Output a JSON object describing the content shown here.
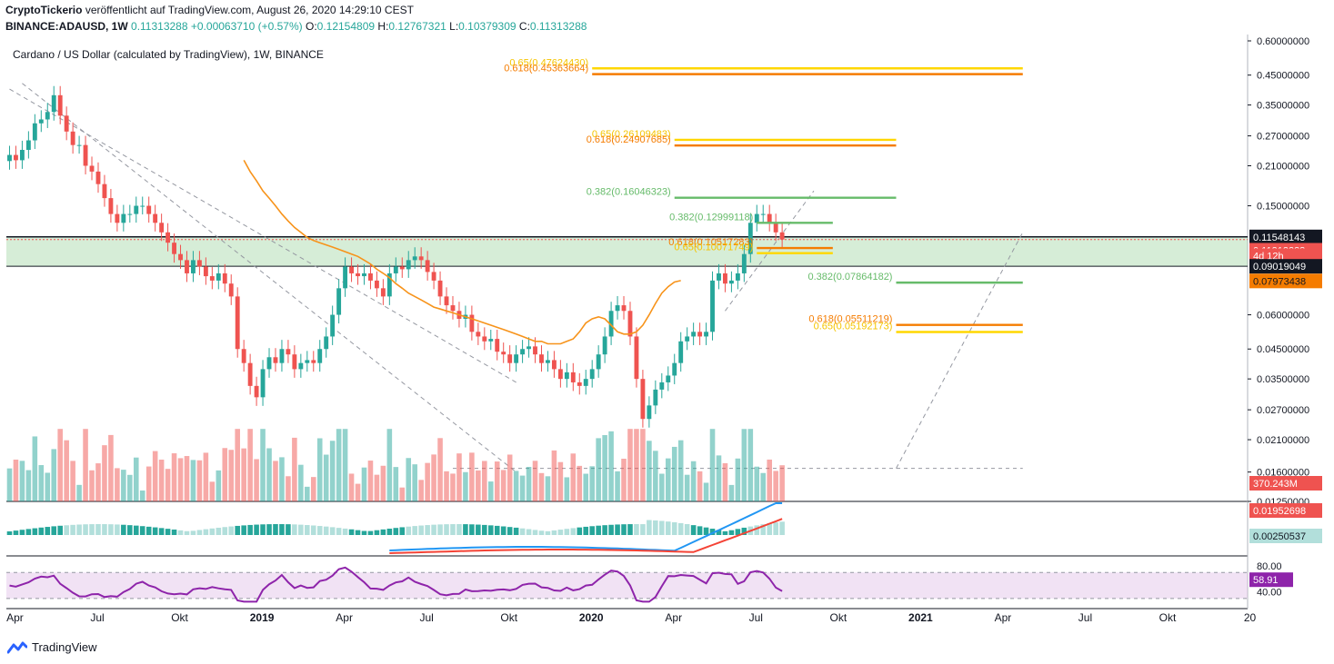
{
  "header": {
    "publisher": "CryptoTickerio",
    "published_text": "veröffentlicht auf TradingView.com, August 26, 2020 14:29:10 CEST",
    "symbol": "BINANCE:ADAUSD, 1W",
    "last": "0.11313288",
    "change": "+0.00063710 (+0.57%)",
    "o_label": "O:",
    "o_value": "0.12154809",
    "h_label": "H:",
    "h_value": "0.12767321",
    "l_label": "L:",
    "l_value": "0.10379309",
    "c_label": "C:",
    "c_value": "0.11313288"
  },
  "footer": {
    "brand": "TradingView"
  },
  "colors": {
    "up": "#26a69a",
    "down": "#ef5350",
    "ma": "#f7931a",
    "macd": "#2196f3",
    "signal": "#f44336",
    "rsi": "#8e24aa",
    "fib_gold": "#ffd700",
    "fib_orange": "#f57c00",
    "fib_green": "#66bb6a"
  },
  "chart_data": {
    "type": "candlestick",
    "title": "Cardano / US Dollar (calculated by TradingView), 1W, BINANCE",
    "y_scale": "log",
    "ylim": [
      0.0125,
      0.6
    ],
    "price_ticks": [
      "0.60000000",
      "0.45000000",
      "0.35000000",
      "0.27000000",
      "0.21000000",
      "0.15000000",
      "0.06000000",
      "0.04500000",
      "0.03500000",
      "0.02700000",
      "0.02100000",
      "0.01600000",
      "0.01250000"
    ],
    "price_tick_values": [
      0.6,
      0.45,
      0.35,
      0.27,
      0.21,
      0.15,
      0.06,
      0.045,
      0.035,
      0.027,
      0.021,
      0.016,
      0.0125
    ],
    "x_ticks": [
      "Apr",
      "Jul",
      "Okt",
      "2019",
      "Apr",
      "Jul",
      "Okt",
      "2020",
      "Apr",
      "Jul",
      "Okt",
      "2021",
      "Apr",
      "Jul",
      "Okt",
      "20"
    ],
    "x_tick_weeks": [
      0,
      13,
      26,
      39,
      52,
      65,
      78,
      91,
      104,
      117,
      130,
      143,
      156,
      169,
      182,
      195
    ],
    "price_labels": [
      {
        "text": "0.11548143",
        "value": 0.11548143,
        "bg": "#131722",
        "fg": "#ffffff"
      },
      {
        "text": "0.11313288",
        "value": 0.11313288,
        "bg": "#ef5350",
        "fg": "#ffffff"
      },
      {
        "text": "4d 12h",
        "value": 0.1,
        "bg": "#ef5350",
        "fg": "#ffffff"
      },
      {
        "text": "0.09019049",
        "value": 0.09019049,
        "bg": "#131722",
        "fg": "#ffffff"
      },
      {
        "text": "0.07973438",
        "value": 0.07973438,
        "bg": "#f57c00",
        "fg": "#131722"
      }
    ],
    "fib_levels": [
      {
        "label": "0.65(0.47624430)",
        "value": 0.4762443,
        "w0": 92,
        "w1": 160,
        "color": "#ffd700",
        "label_color": "#f5c400"
      },
      {
        "label": "0.618(0.45363664)",
        "value": 0.45363664,
        "w0": 92,
        "w1": 160,
        "color": "#f57c00",
        "label_color": "#f57c00"
      },
      {
        "label": "0.65(0.26109483)",
        "value": 0.26109483,
        "w0": 105,
        "w1": 140,
        "color": "#ffd700",
        "label_color": "#f5c400"
      },
      {
        "label": "0.618(0.24907685)",
        "value": 0.24907685,
        "w0": 105,
        "w1": 140,
        "color": "#f57c00",
        "label_color": "#f57c00"
      },
      {
        "label": "0.382(0.16046323)",
        "value": 0.16046323,
        "w0": 105,
        "w1": 140,
        "color": "#66bb6a",
        "label_color": "#66bb6a"
      },
      {
        "label": "0.382(0.12999118)",
        "value": 0.12999118,
        "w0": 118,
        "w1": 130,
        "color": "#66bb6a",
        "label_color": "#66bb6a"
      },
      {
        "label": "0.618(0.10517283)",
        "value": 0.10517283,
        "w0": 118,
        "w1": 130,
        "color": "#f57c00",
        "label_color": "#f57c00"
      },
      {
        "label": "0.65(0.10071749)",
        "value": 0.10071749,
        "w0": 118,
        "w1": 130,
        "color": "#ffd700",
        "label_color": "#f5c400"
      },
      {
        "label": "0.382(0.07864182)",
        "value": 0.07864182,
        "w0": 140,
        "w1": 160,
        "color": "#66bb6a",
        "label_color": "#66bb6a"
      },
      {
        "label": "0.618(0.05511219)",
        "value": 0.05511219,
        "w0": 140,
        "w1": 160,
        "color": "#f57c00",
        "label_color": "#f57c00"
      },
      {
        "label": "0.65(0.05192173)",
        "value": 0.05192173,
        "w0": 140,
        "w1": 160,
        "color": "#ffd700",
        "label_color": "#f5c400"
      }
    ],
    "zone": {
      "top": 0.11548143,
      "bottom": 0.09019049
    },
    "closes": [
      0.23,
      0.22,
      0.24,
      0.26,
      0.3,
      0.31,
      0.33,
      0.38,
      0.32,
      0.28,
      0.25,
      0.25,
      0.21,
      0.2,
      0.18,
      0.16,
      0.14,
      0.13,
      0.14,
      0.14,
      0.15,
      0.15,
      0.14,
      0.13,
      0.12,
      0.11,
      0.1,
      0.095,
      0.085,
      0.095,
      0.09,
      0.083,
      0.08,
      0.085,
      0.078,
      0.07,
      0.045,
      0.04,
      0.033,
      0.03,
      0.038,
      0.042,
      0.04,
      0.045,
      0.043,
      0.038,
      0.04,
      0.041,
      0.04,
      0.045,
      0.05,
      0.06,
      0.075,
      0.09,
      0.085,
      0.083,
      0.085,
      0.08,
      0.075,
      0.07,
      0.085,
      0.09,
      0.088,
      0.095,
      0.098,
      0.095,
      0.086,
      0.08,
      0.07,
      0.065,
      0.062,
      0.058,
      0.06,
      0.052,
      0.05,
      0.048,
      0.049,
      0.044,
      0.043,
      0.04,
      0.043,
      0.045,
      0.046,
      0.043,
      0.04,
      0.041,
      0.038,
      0.035,
      0.037,
      0.034,
      0.033,
      0.035,
      0.038,
      0.043,
      0.05,
      0.062,
      0.065,
      0.062,
      0.05,
      0.035,
      0.025,
      0.028,
      0.032,
      0.034,
      0.036,
      0.04,
      0.048,
      0.05,
      0.052,
      0.05,
      0.052,
      0.08,
      0.085,
      0.078,
      0.08,
      0.085,
      0.1,
      0.13,
      0.14,
      0.14,
      0.13,
      0.12,
      0.113
    ],
    "ma_start": 37,
    "ma": [
      0.22,
      0.2,
      0.185,
      0.17,
      0.16,
      0.15,
      0.14,
      0.132,
      0.125,
      0.12,
      0.115,
      0.112,
      0.11,
      0.108,
      0.106,
      0.104,
      0.102,
      0.1,
      0.098,
      0.095,
      0.092,
      0.088,
      0.085,
      0.082,
      0.078,
      0.075,
      0.072,
      0.07,
      0.068,
      0.066,
      0.064,
      0.063,
      0.062,
      0.061,
      0.06,
      0.059,
      0.058,
      0.057,
      0.056,
      0.055,
      0.054,
      0.053,
      0.052,
      0.051,
      0.05,
      0.049,
      0.048,
      0.048,
      0.047,
      0.047,
      0.047,
      0.048,
      0.049,
      0.052,
      0.056,
      0.058,
      0.059,
      0.058,
      0.055,
      0.052,
      0.051,
      0.051,
      0.052,
      0.055,
      0.06,
      0.066,
      0.072,
      0.076,
      0.079,
      0.08
    ],
    "volume_label": "370.243M",
    "macd_labels": [
      {
        "text": "0.01952698",
        "bg": "#ef5350",
        "fg": "#ffffff"
      },
      {
        "text": "0.00250537",
        "bg": "#b2dfdb",
        "fg": "#131722"
      }
    ],
    "rsi_value": "58.91",
    "rsi_ticks": [
      "80.00",
      "40.00"
    ]
  }
}
